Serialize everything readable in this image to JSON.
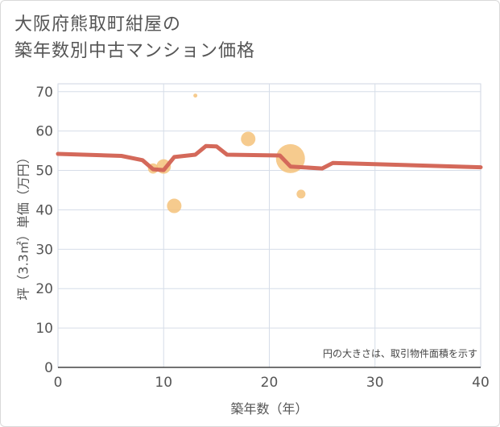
{
  "title_lines": [
    "大阪府熊取町紺屋の",
    "築年数別中古マンション価格"
  ],
  "chart_data": {
    "type": "scatter",
    "title": "大阪府熊取町紺屋の築年数別中古マンション価格",
    "xlabel": "築年数（年）",
    "ylabel": "坪（3.3㎡）単価（万円）",
    "xlim": [
      0,
      40
    ],
    "ylim": [
      0,
      72
    ],
    "x_ticks": [
      0,
      10,
      20,
      30,
      40
    ],
    "y_ticks": [
      0,
      10,
      20,
      30,
      40,
      50,
      60,
      70
    ],
    "grid": true,
    "annotation": "円の大きさは、取引物件面積を示す",
    "colors": {
      "bubble": "#f5c27a",
      "line": "#d4695a",
      "grid": "#d6dde8"
    },
    "bubbles": [
      {
        "x": 9,
        "y": 50.5,
        "size": 2
      },
      {
        "x": 10,
        "y": 51,
        "size": 4
      },
      {
        "x": 11,
        "y": 41,
        "size": 4
      },
      {
        "x": 13,
        "y": 69,
        "size": 0.3
      },
      {
        "x": 18,
        "y": 58,
        "size": 4
      },
      {
        "x": 22,
        "y": 53,
        "size": 16
      },
      {
        "x": 23,
        "y": 44,
        "size": 1.5
      }
    ],
    "line": {
      "x": [
        0,
        6,
        8,
        9,
        10,
        11,
        13,
        14,
        15,
        16,
        21,
        22,
        25,
        26,
        40
      ],
      "y": [
        54.2,
        53.7,
        52.6,
        50.3,
        50.1,
        53.4,
        54.0,
        56.2,
        56.1,
        54.0,
        53.8,
        51.0,
        50.5,
        51.9,
        50.8
      ]
    }
  }
}
